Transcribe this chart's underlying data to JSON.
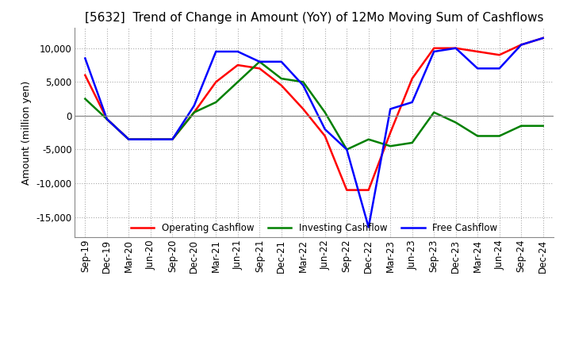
{
  "title": "[5632]  Trend of Change in Amount (YoY) of 12Mo Moving Sum of Cashflows",
  "ylabel": "Amount (million yen)",
  "x_labels": [
    "Sep-19",
    "Dec-19",
    "Mar-20",
    "Jun-20",
    "Sep-20",
    "Dec-20",
    "Mar-21",
    "Jun-21",
    "Sep-21",
    "Dec-21",
    "Mar-22",
    "Jun-22",
    "Sep-22",
    "Dec-22",
    "Mar-23",
    "Jun-23",
    "Sep-23",
    "Dec-23",
    "Mar-24",
    "Jun-24",
    "Sep-24",
    "Dec-24"
  ],
  "operating": [
    6000,
    -500,
    -3500,
    -3500,
    -3500,
    500,
    5000,
    7500,
    7000,
    4500,
    1000,
    -3000,
    -11000,
    -11000,
    -2500,
    5500,
    10000,
    10000,
    9500,
    9000,
    10500,
    11500
  ],
  "investing": [
    2500,
    -500,
    -3500,
    -3500,
    -3500,
    500,
    2000,
    5000,
    8000,
    5500,
    5000,
    500,
    -5000,
    -3500,
    -4500,
    -4000,
    500,
    -1000,
    -3000,
    -3000,
    -1500,
    -1500
  ],
  "free": [
    8500,
    -500,
    -3500,
    -3500,
    -3500,
    1500,
    9500,
    9500,
    8000,
    8000,
    4500,
    -2000,
    -5000,
    -16500,
    1000,
    2000,
    9500,
    10000,
    7000,
    7000,
    10500,
    11500
  ],
  "operating_color": "#ff0000",
  "investing_color": "#008000",
  "free_color": "#0000ff",
  "ylim": [
    -18000,
    13000
  ],
  "yticks": [
    -15000,
    -10000,
    -5000,
    0,
    5000,
    10000
  ],
  "grid_color": "#aaaaaa",
  "background_color": "#ffffff",
  "title_fontsize": 11,
  "axis_fontsize": 9,
  "tick_fontsize": 8.5
}
